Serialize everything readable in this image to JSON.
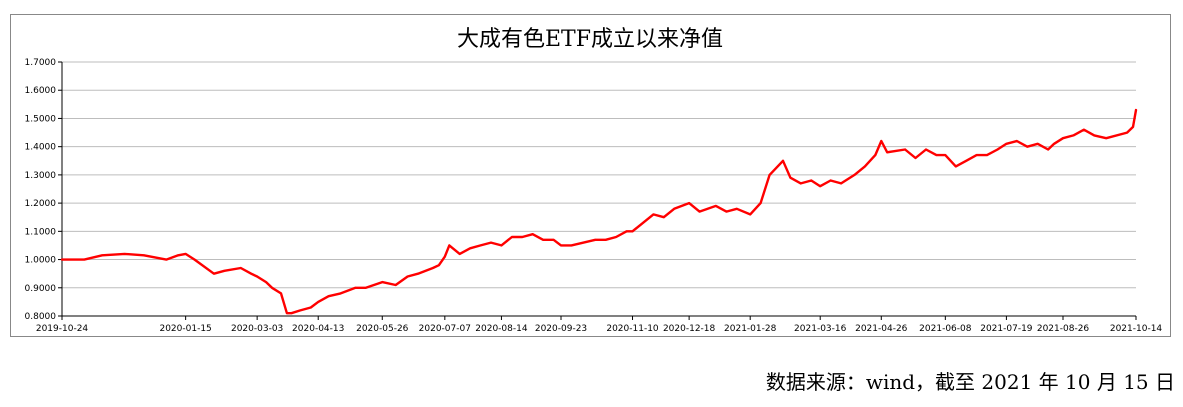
{
  "chart_data": {
    "type": "line",
    "title": "大成有色ETF成立以来净值",
    "xlabel": "",
    "ylabel": "",
    "ylim": [
      0.8,
      1.7
    ],
    "yticks": [
      "0.8000",
      "0.9000",
      "1.0000",
      "1.1000",
      "1.2000",
      "1.3000",
      "1.4000",
      "1.5000",
      "1.6000",
      "1.7000"
    ],
    "xticks": [
      "2019-10-24",
      "2020-01-15",
      "2020-03-03",
      "2020-04-13",
      "2020-05-26",
      "2020-07-07",
      "2020-08-14",
      "2020-09-23",
      "2020-11-10",
      "2020-12-18",
      "2021-01-28",
      "2021-03-16",
      "2021-04-26",
      "2021-06-08",
      "2021-07-19",
      "2021-08-26",
      "2021-10-14"
    ],
    "grid": "horizontal",
    "legend": "none",
    "line_color": "#ff0000",
    "series": [
      {
        "x": [
          "2019-10-24",
          "2019-11-08",
          "2019-11-20",
          "2019-12-05",
          "2019-12-18",
          "2020-01-02",
          "2020-01-10",
          "2020-01-15",
          "2020-01-21",
          "2020-02-03",
          "2020-02-10",
          "2020-02-21",
          "2020-02-28",
          "2020-03-03",
          "2020-03-09",
          "2020-03-13",
          "2020-03-19",
          "2020-03-23",
          "2020-03-26",
          "2020-04-01",
          "2020-04-08",
          "2020-04-13",
          "2020-04-20",
          "2020-04-28",
          "2020-05-08",
          "2020-05-15",
          "2020-05-26",
          "2020-06-04",
          "2020-06-12",
          "2020-06-19",
          "2020-06-29",
          "2020-07-03",
          "2020-07-07",
          "2020-07-10",
          "2020-07-17",
          "2020-07-24",
          "2020-07-31",
          "2020-08-07",
          "2020-08-14",
          "2020-08-21",
          "2020-08-28",
          "2020-09-04",
          "2020-09-11",
          "2020-09-18",
          "2020-09-23",
          "2020-09-30",
          "2020-10-16",
          "2020-10-23",
          "2020-10-30",
          "2020-11-06",
          "2020-11-10",
          "2020-11-17",
          "2020-11-24",
          "2020-12-01",
          "2020-12-08",
          "2020-12-18",
          "2020-12-25",
          "2021-01-05",
          "2021-01-12",
          "2021-01-19",
          "2021-01-28",
          "2021-02-04",
          "2021-02-10",
          "2021-02-19",
          "2021-02-24",
          "2021-03-03",
          "2021-03-10",
          "2021-03-16",
          "2021-03-23",
          "2021-03-30",
          "2021-04-08",
          "2021-04-15",
          "2021-04-22",
          "2021-04-26",
          "2021-04-30",
          "2021-05-12",
          "2021-05-19",
          "2021-05-26",
          "2021-06-02",
          "2021-06-08",
          "2021-06-15",
          "2021-06-22",
          "2021-06-29",
          "2021-07-06",
          "2021-07-13",
          "2021-07-19",
          "2021-07-26",
          "2021-08-02",
          "2021-08-09",
          "2021-08-16",
          "2021-08-20",
          "2021-08-26",
          "2021-09-02",
          "2021-09-09",
          "2021-09-16",
          "2021-09-24",
          "2021-10-08",
          "2021-10-12",
          "2021-10-14"
        ],
        "values": [
          1.0,
          1.0,
          1.015,
          1.02,
          1.015,
          1.0,
          1.015,
          1.02,
          1.0,
          0.95,
          0.96,
          0.97,
          0.95,
          0.94,
          0.92,
          0.9,
          0.88,
          0.81,
          0.81,
          0.82,
          0.83,
          0.85,
          0.87,
          0.88,
          0.9,
          0.9,
          0.92,
          0.91,
          0.94,
          0.95,
          0.97,
          0.98,
          1.01,
          1.05,
          1.02,
          1.04,
          1.05,
          1.06,
          1.05,
          1.08,
          1.08,
          1.09,
          1.07,
          1.07,
          1.05,
          1.05,
          1.07,
          1.07,
          1.08,
          1.1,
          1.1,
          1.13,
          1.16,
          1.15,
          1.18,
          1.2,
          1.17,
          1.19,
          1.17,
          1.18,
          1.16,
          1.2,
          1.3,
          1.35,
          1.29,
          1.27,
          1.28,
          1.26,
          1.28,
          1.27,
          1.3,
          1.33,
          1.37,
          1.42,
          1.38,
          1.39,
          1.36,
          1.39,
          1.37,
          1.37,
          1.33,
          1.35,
          1.37,
          1.37,
          1.39,
          1.41,
          1.42,
          1.4,
          1.41,
          1.39,
          1.41,
          1.43,
          1.44,
          1.46,
          1.44,
          1.43,
          1.45,
          1.47,
          1.53
        ]
      }
    ]
  },
  "source_note": "数据来源：wind，截至 2021 年 10 月 15 日"
}
